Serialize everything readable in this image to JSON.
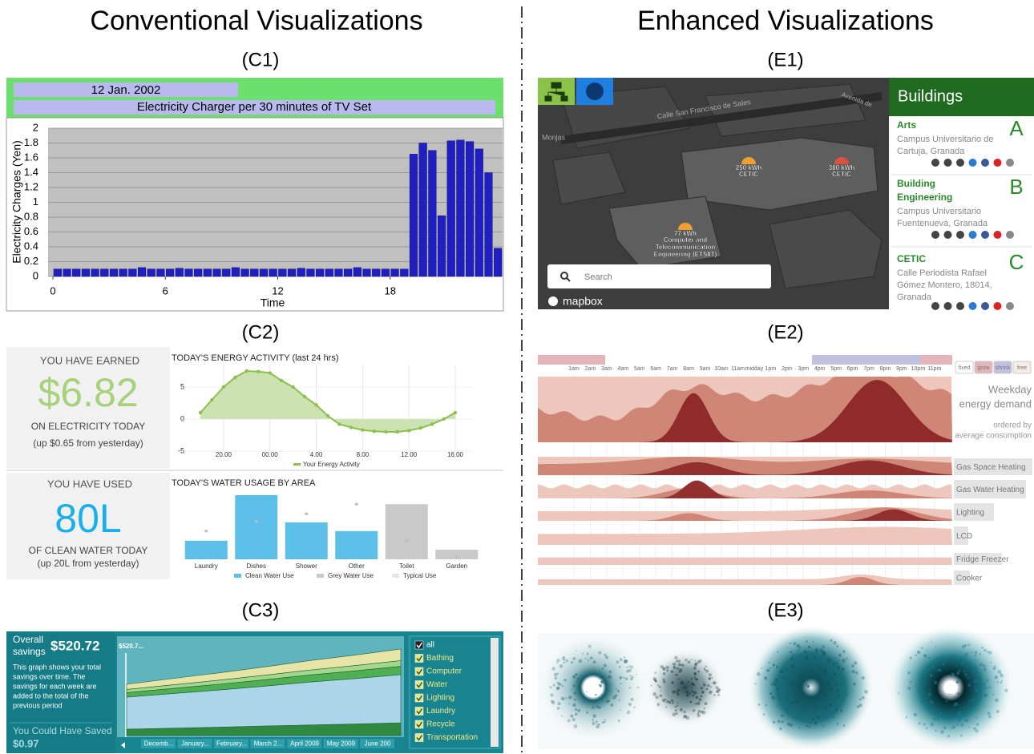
{
  "headings": {
    "left": "Conventional Visualizations",
    "right": "Enhanced Visualizations"
  },
  "panel_labels": [
    "(C1)",
    "(C2)",
    "(C3)",
    "(E1)",
    "(E2)",
    "(E3)"
  ],
  "chart_data": [
    {
      "type": "bar",
      "header": "12 Jan. 2002",
      "title": "Electricity Charger per 30 minutes of TV Set",
      "y_label": "Electricity Charges (Yen)",
      "x_label": "Time",
      "color": "#1f1fc4",
      "x": [
        0,
        0.5,
        1,
        1.5,
        2,
        2.5,
        3,
        3.5,
        4,
        4.5,
        5,
        5.5,
        6,
        6.5,
        7,
        7.5,
        8,
        8.5,
        9,
        9.5,
        10,
        10.5,
        11,
        11.5,
        12,
        12.5,
        13,
        13.5,
        14,
        14.5,
        15,
        15.5,
        16,
        16.5,
        17,
        17.5,
        18,
        18.5,
        19,
        19.5,
        20,
        20.5,
        21,
        21.5,
        22,
        22.5,
        23,
        23.5
      ],
      "values": [
        0.1,
        0.1,
        0.1,
        0.1,
        0.1,
        0.1,
        0.1,
        0.1,
        0.1,
        0.12,
        0.1,
        0.1,
        0.1,
        0.11,
        0.1,
        0.1,
        0.1,
        0.1,
        0.1,
        0.12,
        0.1,
        0.1,
        0.1,
        0.1,
        0.1,
        0.1,
        0.11,
        0.1,
        0.1,
        0.1,
        0.1,
        0.1,
        0.12,
        0.1,
        0.1,
        0.1,
        0.1,
        0.1,
        1.65,
        1.8,
        1.7,
        0.82,
        1.83,
        1.84,
        1.82,
        1.72,
        1.4,
        0.38
      ],
      "xlim": [
        0,
        24
      ],
      "xticks": [
        0,
        6,
        12,
        18
      ],
      "ylim": [
        0,
        2
      ],
      "yticks": [
        0,
        0.2,
        0.4,
        0.6,
        0.8,
        1,
        1.2,
        1.4,
        1.6,
        1.8,
        2
      ],
      "grid": true
    },
    {
      "type": "line",
      "title": "TODAY'S ENERGY ACTIVITY (last 24 hrs)",
      "x": [
        18,
        19,
        20,
        21,
        22,
        23,
        24,
        25,
        26,
        27,
        28,
        29,
        30,
        31,
        32,
        33,
        34,
        35,
        36,
        37,
        38,
        39,
        40
      ],
      "series": [
        {
          "name": "Your Energy Activity",
          "color": "#8dbf4e",
          "values": [
            1,
            3,
            5,
            6.5,
            7.5,
            7.4,
            7.2,
            6,
            5,
            3.5,
            2.2,
            0.5,
            -0.8,
            -1.3,
            -1.7,
            -1.9,
            -2,
            -2,
            -1.8,
            -1.4,
            -0.8,
            0,
            1
          ]
        }
      ],
      "xlim": [
        18,
        40
      ],
      "xticks": [
        {
          "value": 20,
          "label": "20.00"
        },
        {
          "value": 24,
          "label": "00.00"
        },
        {
          "value": 28,
          "label": "4.00"
        },
        {
          "value": 32,
          "label": "8.00"
        },
        {
          "value": 36,
          "label": "12.00"
        },
        {
          "value": 40,
          "label": "16.00"
        }
      ],
      "ylim": [
        -5,
        8.5
      ],
      "yticks": [
        -5,
        0,
        5
      ],
      "grid": true
    },
    {
      "type": "bar",
      "title": "TODAY'S WATER USAGE BY AREA",
      "categories": [
        "Laundry",
        "Dishes",
        "Shower",
        "Other",
        "Toilet",
        "Garden"
      ],
      "series": [
        {
          "name": "Clean Water Use",
          "color": "#5bbfe8",
          "values": [
            2.9,
            10,
            5.75,
            4.4,
            null,
            null
          ]
        },
        {
          "name": "Grey Water Use",
          "color": "#c9c9c9",
          "values": [
            null,
            null,
            null,
            null,
            8.6,
            1.5
          ]
        },
        {
          "name": "Typical Use",
          "color": "#bdbdbd",
          "values": [
            4.4,
            5.9,
            7.1,
            8.6,
            2.9,
            0.4
          ]
        }
      ]
    },
    {
      "type": "area",
      "annotation": "$520.7...",
      "categories": [
        "Decemb...",
        "January...",
        "February...",
        "March 2...",
        "April 2009",
        "May 2009",
        "June 200"
      ],
      "series": [
        {
          "color": "#2f8a3f",
          "values": [
            1,
            1.15,
            1.3,
            1.5,
            1.65,
            1.8,
            2
          ]
        },
        {
          "color": "#acd5e9",
          "values": [
            5,
            5.4,
            5.8,
            6.2,
            6.7,
            7.1,
            7.5
          ]
        },
        {
          "color": "#4faf52",
          "values": [
            0.7,
            0.8,
            0.9,
            1,
            1.1,
            1.2,
            1.3
          ]
        },
        {
          "color": "#a2d78c",
          "values": [
            0.5,
            0.57,
            0.63,
            0.7,
            0.77,
            0.83,
            0.9
          ]
        },
        {
          "color": "#e7e4a8",
          "values": [
            0.8,
            0.97,
            1.13,
            1.3,
            1.47,
            1.63,
            1.8
          ]
        }
      ]
    }
  ],
  "summaries": [
    {
      "heading": "YOU HAVE EARNED",
      "figure": "$6.82",
      "caption": "ON ELECTRICITY TODAY",
      "note": "(up $0.65 from yesterday)",
      "color": "#a6d27b"
    },
    {
      "heading": "YOU HAVE USED",
      "figure": "80L",
      "caption": "OF CLEAN WATER TODAY",
      "note": "(up 20L from yesterday)",
      "color": "#1aaeea"
    }
  ],
  "savings": {
    "label": [
      "Overall",
      "savings"
    ],
    "amount": "$520.72",
    "description": [
      "This graph shows your total",
      "savings over time. The",
      "savings for each week are",
      "added to the total of the",
      "previous period"
    ],
    "missed_label": "You Could Have Saved",
    "missed_amount": "$0.97",
    "legend": [
      "all",
      "Bathing",
      "Computer",
      "Water",
      "Lighting",
      "Laundry",
      "Recycle",
      "Transportation"
    ]
  },
  "map": {
    "streets": [
      "Calle San Francisco de Sales",
      "Monjas",
      "Avenida de"
    ],
    "markers": [
      {
        "value": "250 kWh",
        "name": [
          "CETIC"
        ]
      },
      {
        "value": "380 kWh",
        "name": [
          "CETIC"
        ]
      },
      {
        "value": "77 kWh",
        "name": [
          "Computer and",
          "Telecommunication",
          "Engineering (ETSIIT)"
        ]
      }
    ],
    "search": "Search",
    "brand": "mapbox"
  },
  "sidebar": {
    "title": "Buildings",
    "entries": [
      {
        "name": [
          "Arts"
        ],
        "address": [
          "Campus Universitario de",
          "Cartuja, Granada"
        ],
        "letter": "A"
      },
      {
        "name": [
          "Building",
          "Engineering"
        ],
        "address": [
          "Campus Universitario",
          "Fuentenueva, Granada"
        ],
        "letter": "B"
      },
      {
        "name": [
          "CETIC"
        ],
        "address": [
          "Calle Periodista Rafael",
          "Gómez Montero, 18014,",
          "Granada"
        ],
        "letter": "C"
      }
    ]
  },
  "demand": {
    "hours": [
      "1am",
      "2am",
      "3am",
      "4am",
      "5am",
      "6am",
      "7am",
      "8am",
      "9am",
      "10am",
      "11am",
      "midday",
      "1pm",
      "2pm",
      "3pm",
      "4pm",
      "5pm",
      "6pm",
      "7pm",
      "8pm",
      "9pm",
      "10pm",
      "11pm"
    ],
    "modes": [
      "fixed",
      "grow",
      "shrink",
      "free"
    ],
    "title": [
      "Weekday",
      "energy demand"
    ],
    "subtitle": [
      "ordered by",
      "average consumption"
    ],
    "rows": [
      "Gas Space Heating",
      "Gas Water Heating",
      "Lighting",
      "LCD",
      "Fridge Freezer",
      "Cooker"
    ]
  }
}
